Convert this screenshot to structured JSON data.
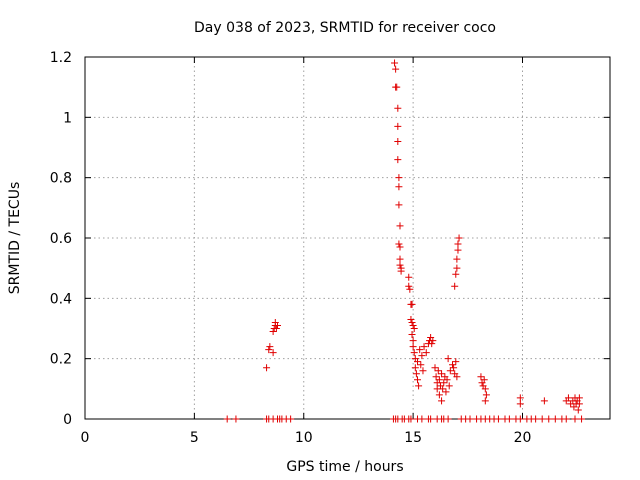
{
  "chart_data": {
    "type": "scatter",
    "title": "Day 038 of 2023, SRMTID for receiver coco",
    "xlabel": "GPS time / hours",
    "ylabel": "SRMTID / TECUs",
    "xlim": [
      0,
      24
    ],
    "ylim": [
      0,
      1.2
    ],
    "x_ticks": [
      0,
      5,
      10,
      15,
      20
    ],
    "y_ticks": [
      0,
      0.2,
      0.4,
      0.6,
      0.8,
      1,
      1.2
    ],
    "x_tick_labels": [
      "0",
      "5",
      "10",
      "15",
      "20"
    ],
    "y_tick_labels": [
      "0",
      "0.2",
      "0.4",
      "0.6",
      "0.8",
      "1",
      "1.2"
    ],
    "grid": true,
    "marker": "plus",
    "color": "#e00000",
    "series": [
      {
        "name": "SRMTID",
        "points": [
          [
            6.5,
            0
          ],
          [
            6.9,
            0
          ],
          [
            8.3,
            0
          ],
          [
            8.4,
            0
          ],
          [
            8.6,
            0
          ],
          [
            8.8,
            0
          ],
          [
            8.9,
            0
          ],
          [
            9.0,
            0
          ],
          [
            9.2,
            0
          ],
          [
            9.4,
            0
          ],
          [
            8.3,
            0.17
          ],
          [
            8.4,
            0.23
          ],
          [
            8.45,
            0.24
          ],
          [
            8.6,
            0.22
          ],
          [
            8.6,
            0.29
          ],
          [
            8.65,
            0.3
          ],
          [
            8.7,
            0.31
          ],
          [
            8.7,
            0.32
          ],
          [
            8.75,
            0.3
          ],
          [
            8.8,
            0.31
          ],
          [
            14.1,
            0
          ],
          [
            14.2,
            0
          ],
          [
            14.3,
            0
          ],
          [
            14.5,
            0
          ],
          [
            14.6,
            0
          ],
          [
            14.8,
            0
          ],
          [
            14.9,
            0
          ],
          [
            14.15,
            1.18
          ],
          [
            14.2,
            1.16
          ],
          [
            14.2,
            1.1
          ],
          [
            14.25,
            1.1
          ],
          [
            14.3,
            1.03
          ],
          [
            14.3,
            0.97
          ],
          [
            14.3,
            0.92
          ],
          [
            14.3,
            0.86
          ],
          [
            14.35,
            0.8
          ],
          [
            14.35,
            0.77
          ],
          [
            14.35,
            0.71
          ],
          [
            14.4,
            0.64
          ],
          [
            14.35,
            0.58
          ],
          [
            14.4,
            0.57
          ],
          [
            14.4,
            0.53
          ],
          [
            14.4,
            0.51
          ],
          [
            14.45,
            0.5
          ],
          [
            14.45,
            0.49
          ],
          [
            14.8,
            0.47
          ],
          [
            14.8,
            0.44
          ],
          [
            14.85,
            0.43
          ],
          [
            14.9,
            0.38
          ],
          [
            14.95,
            0.38
          ],
          [
            14.9,
            0.33
          ],
          [
            14.95,
            0.32
          ],
          [
            15.0,
            0.31
          ],
          [
            15.05,
            0.3
          ],
          [
            14.95,
            0.28
          ],
          [
            15.0,
            0.26
          ],
          [
            15.0,
            0.24
          ],
          [
            15.05,
            0.22
          ],
          [
            15.1,
            0.2
          ],
          [
            15.1,
            0.17
          ],
          [
            15.15,
            0.15
          ],
          [
            15.2,
            0.13
          ],
          [
            15.25,
            0.11
          ],
          [
            15.2,
            0.19
          ],
          [
            15.3,
            0.23
          ],
          [
            15.35,
            0.18
          ],
          [
            15.4,
            0.21
          ],
          [
            15.45,
            0.16
          ],
          [
            15.5,
            0.24
          ],
          [
            15.6,
            0.22
          ],
          [
            15.7,
            0.25
          ],
          [
            15.75,
            0.26
          ],
          [
            15.8,
            0.27
          ],
          [
            15.85,
            0.25
          ],
          [
            15.9,
            0.26
          ],
          [
            15.2,
            0
          ],
          [
            15.4,
            0
          ],
          [
            15.7,
            0
          ],
          [
            15.8,
            0
          ],
          [
            16.1,
            0
          ],
          [
            16.3,
            0
          ],
          [
            16.4,
            0
          ],
          [
            16.6,
            0
          ],
          [
            16.0,
            0.17
          ],
          [
            16.05,
            0.14
          ],
          [
            16.1,
            0.12
          ],
          [
            16.1,
            0.1
          ],
          [
            16.15,
            0.16
          ],
          [
            16.2,
            0.13
          ],
          [
            16.2,
            0.08
          ],
          [
            16.25,
            0.11
          ],
          [
            16.3,
            0.06
          ],
          [
            16.3,
            0.15
          ],
          [
            16.35,
            0.1
          ],
          [
            16.4,
            0.12
          ],
          [
            16.45,
            0.14
          ],
          [
            16.5,
            0.09
          ],
          [
            16.55,
            0.13
          ],
          [
            16.6,
            0.2
          ],
          [
            16.65,
            0.11
          ],
          [
            16.7,
            0.16
          ],
          [
            16.8,
            0.18
          ],
          [
            16.85,
            0.17
          ],
          [
            16.9,
            0.15
          ],
          [
            16.95,
            0.19
          ],
          [
            17.0,
            0.14
          ],
          [
            16.9,
            0.44
          ],
          [
            16.95,
            0.48
          ],
          [
            17.0,
            0.5
          ],
          [
            17.0,
            0.53
          ],
          [
            17.05,
            0.56
          ],
          [
            17.05,
            0.58
          ],
          [
            17.1,
            0.6
          ],
          [
            17.2,
            0
          ],
          [
            17.4,
            0
          ],
          [
            17.6,
            0
          ],
          [
            17.9,
            0
          ],
          [
            18.1,
            0
          ],
          [
            18.3,
            0
          ],
          [
            18.5,
            0
          ],
          [
            18.7,
            0
          ],
          [
            18.9,
            0
          ],
          [
            18.1,
            0.14
          ],
          [
            18.15,
            0.12
          ],
          [
            18.2,
            0.11
          ],
          [
            18.25,
            0.13
          ],
          [
            18.3,
            0.1
          ],
          [
            18.35,
            0.08
          ],
          [
            18.3,
            0.06
          ],
          [
            19.2,
            0
          ],
          [
            19.4,
            0
          ],
          [
            19.7,
            0
          ],
          [
            19.9,
            0
          ],
          [
            20.2,
            0
          ],
          [
            20.4,
            0
          ],
          [
            20.6,
            0
          ],
          [
            20.9,
            0
          ],
          [
            19.9,
            0.07
          ],
          [
            19.9,
            0.05
          ],
          [
            21.0,
            0.06
          ],
          [
            21.2,
            0
          ],
          [
            21.5,
            0
          ],
          [
            21.8,
            0
          ],
          [
            22.0,
            0
          ],
          [
            22.4,
            0
          ],
          [
            22.7,
            0
          ],
          [
            22.0,
            0.06
          ],
          [
            22.1,
            0.07
          ],
          [
            22.2,
            0.05
          ],
          [
            22.3,
            0.06
          ],
          [
            22.35,
            0.04
          ],
          [
            22.4,
            0.07
          ],
          [
            22.45,
            0.05
          ],
          [
            22.5,
            0.06
          ],
          [
            22.55,
            0.03
          ],
          [
            22.6,
            0.05
          ],
          [
            22.6,
            0.07
          ]
        ]
      }
    ]
  }
}
